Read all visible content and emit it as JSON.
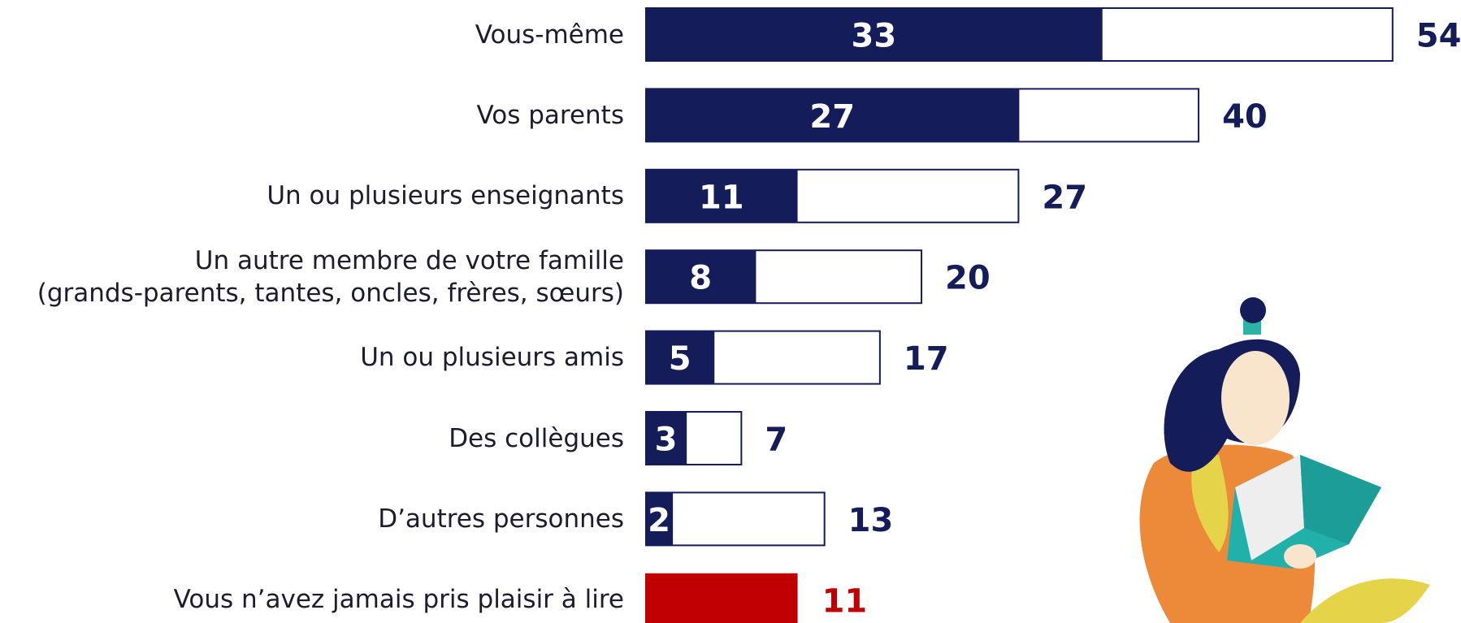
{
  "chart_data": {
    "type": "bar",
    "categories": [
      "Vous-même",
      "Vos parents",
      "Un ou plusieurs enseignants",
      "Un autre membre de votre famille\n(grands-parents, tantes, oncles, frères, sœurs)",
      "Un ou plusieurs amis",
      "Des collègues",
      "D’autres personnes",
      "Vous n’avez jamais pris plaisir à lire"
    ],
    "series": [
      {
        "color": "#141c5a",
        "values": [
          33,
          27,
          11,
          8,
          5,
          3,
          2,
          null
        ]
      },
      {
        "color": "#141c5a",
        "values": [
          54,
          40,
          27,
          20,
          17,
          7,
          13,
          null
        ]
      },
      {
        "color": "#c00000",
        "values": [
          null,
          null,
          null,
          null,
          null,
          null,
          null,
          11
        ]
      }
    ],
    "xlim": [
      0,
      58
    ]
  }
}
